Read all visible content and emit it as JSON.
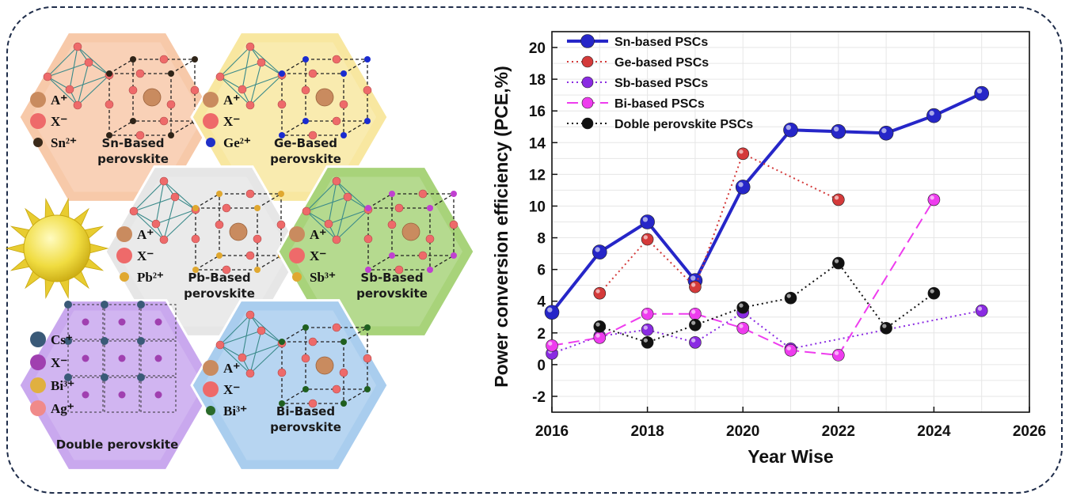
{
  "hexagons": [
    {
      "name": "sn",
      "title_lines": [
        "Sn-Based",
        "perovskite"
      ],
      "key": [
        {
          "label": "A⁺",
          "color": "#c98b5f"
        },
        {
          "label": "X⁻",
          "color": "#ee6a6a"
        },
        {
          "label": "Sn²⁺",
          "color": "#3a2a1a"
        }
      ],
      "bg": "#f7c9a9",
      "accent": "#2f2418"
    },
    {
      "name": "ge",
      "title_lines": [
        "Ge-Based",
        "perovskite"
      ],
      "key": [
        {
          "label": "A⁺",
          "color": "#c98b5f"
        },
        {
          "label": "X⁻",
          "color": "#ee6a6a"
        },
        {
          "label": "Ge²⁺",
          "color": "#2030c8"
        }
      ],
      "bg": "#f8e7a0",
      "accent": "#1a2bd0"
    },
    {
      "name": "pb",
      "title_lines": [
        "Pb-Based",
        "perovskite"
      ],
      "key": [
        {
          "label": "A⁺",
          "color": "#c98b5f"
        },
        {
          "label": "X⁻",
          "color": "#ee6a6a"
        },
        {
          "label": "Pb²⁺",
          "color": "#e0a830"
        }
      ],
      "bg": "#e6e6e6",
      "accent": "#e0a830"
    },
    {
      "name": "sb",
      "title_lines": [
        "Sb-Based",
        "perovskite"
      ],
      "key": [
        {
          "label": "A⁺",
          "color": "#c98b5f"
        },
        {
          "label": "X⁻",
          "color": "#ee6a6a"
        },
        {
          "label": "Sb³⁺",
          "color": "#e0a830"
        }
      ],
      "bg": "#a8d37a",
      "accent": "#c040d0"
    },
    {
      "name": "double",
      "title_lines": [
        "Double perovskite"
      ],
      "key": [
        {
          "label": "Cs⁺",
          "color": "#3a5a78"
        },
        {
          "label": "X⁻",
          "color": "#a040b0"
        },
        {
          "label": "Bi³⁺",
          "color": "#e0b040"
        },
        {
          "label": "Ag⁺",
          "color": "#f08a8a"
        }
      ],
      "bg": "#c9a8ee",
      "accent": "#3a5a78"
    },
    {
      "name": "bi",
      "title_lines": [
        "Bi-Based",
        "perovskite"
      ],
      "key": [
        {
          "label": "A⁺",
          "color": "#c98b5f"
        },
        {
          "label": "X⁻",
          "color": "#ee6a6a"
        },
        {
          "label": "Bi³⁺",
          "color": "#2a6a2a"
        }
      ],
      "bg": "#a9cdee",
      "accent": "#1f5f1f"
    }
  ],
  "chart_data": {
    "type": "line",
    "xlabel": "Year  Wise",
    "ylabel": "Power conversion efficiency (PCE,%)",
    "xlim": [
      2016,
      2026
    ],
    "ylim": [
      -3,
      21
    ],
    "xticks": [
      2016,
      2018,
      2020,
      2022,
      2024,
      2026
    ],
    "yticks": [
      -2,
      0,
      2,
      4,
      6,
      8,
      10,
      12,
      14,
      16,
      18,
      20
    ],
    "grid": true,
    "legend_position": "top-left",
    "series": [
      {
        "name": "Sn-based PSCs",
        "color": "#2626c8",
        "style": "solid",
        "x": [
          2016,
          2017,
          2018,
          2019,
          2020,
          2021,
          2022,
          2023,
          2024,
          2025
        ],
        "y": [
          3.3,
          7.1,
          9.0,
          5.3,
          11.2,
          14.8,
          14.7,
          14.6,
          15.7,
          17.1
        ]
      },
      {
        "name": "Ge-based PSCs",
        "color": "#d43a3a",
        "style": "dotted",
        "x": [
          2017,
          2018,
          2019,
          2020,
          2022
        ],
        "y": [
          4.5,
          7.9,
          4.9,
          13.3,
          10.4
        ]
      },
      {
        "name": "Sb-based PSCs",
        "color": "#8a2be2",
        "style": "dotted",
        "x": [
          2016,
          2017,
          2018,
          2019,
          2020,
          2021,
          2025
        ],
        "y": [
          0.7,
          1.8,
          2.2,
          1.4,
          3.3,
          1.0,
          3.4
        ]
      },
      {
        "name": "Bi-based PSCs",
        "color": "#ee3cee",
        "style": "dashed",
        "x": [
          2016,
          2017,
          2018,
          2019,
          2020,
          2021,
          2022,
          2024
        ],
        "y": [
          1.2,
          1.7,
          3.2,
          3.2,
          2.3,
          0.9,
          0.6,
          10.4
        ]
      },
      {
        "name": "Doble perovskite PSCs",
        "color": "#111111",
        "style": "dotted",
        "x": [
          2017,
          2018,
          2019,
          2020,
          2021,
          2022,
          2023,
          2024
        ],
        "y": [
          2.4,
          1.4,
          2.5,
          3.6,
          4.2,
          6.4,
          2.3,
          4.5
        ]
      }
    ]
  }
}
